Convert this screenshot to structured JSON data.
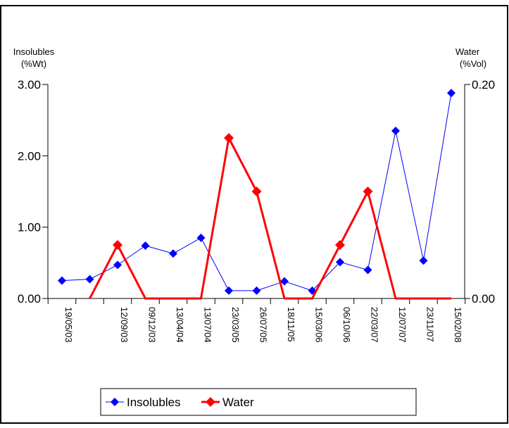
{
  "chart_data": {
    "type": "line",
    "categories": [
      "19/05/03",
      "",
      "12/09/03",
      "09/12/03",
      "13/04/04",
      "13/07/04",
      "23/03/05",
      "26/07/05",
      "18/11/05",
      "15/03/06",
      "06/10/06",
      "22/03/07",
      "12/07/07",
      "23/11/07",
      "15/02/08"
    ],
    "y_left": {
      "title_line1": "Insolubles",
      "title_line2": "(%Wt)",
      "ylim": [
        0,
        3
      ],
      "ticks": [
        "0.00",
        "1.00",
        "2.00",
        "3.00"
      ]
    },
    "y_right": {
      "title_line1": "Water",
      "title_line2": "(%Vol)",
      "ylim": [
        0,
        0.2
      ],
      "ticks": [
        "0.00",
        "0.20"
      ]
    },
    "series": [
      {
        "name": "Insolubles",
        "axis": "left",
        "color": "#0000ff",
        "marker": "diamond",
        "values": [
          0.25,
          0.27,
          0.47,
          0.74,
          0.63,
          0.85,
          0.11,
          0.11,
          0.24,
          0.11,
          0.51,
          0.4,
          2.35,
          0.53,
          2.88
        ]
      },
      {
        "name": "Water",
        "axis": "right",
        "color": "#ff0000",
        "marker": "diamond",
        "values": [
          null,
          0.0,
          0.05,
          0.0,
          0.0,
          0.0,
          0.15,
          0.1,
          0.0,
          0.0,
          0.05,
          0.1,
          0.0,
          0.0,
          0.0
        ]
      }
    ],
    "legend": {
      "placement": "bottom-center"
    },
    "grid": false
  }
}
